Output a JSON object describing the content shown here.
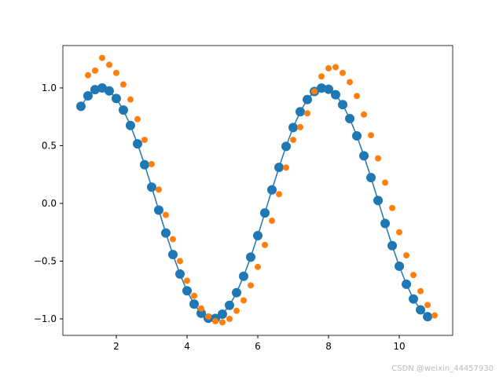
{
  "chart_data": {
    "type": "line-scatter",
    "xlim": [
      0.49,
      11.51
    ],
    "ylim": [
      -1.143,
      1.367
    ],
    "xticks": [
      2,
      4,
      6,
      8,
      10
    ],
    "yticks": [
      {
        "value": -1,
        "label": "−1.0"
      },
      {
        "value": -0.5,
        "label": "−0.5"
      },
      {
        "value": 0,
        "label": "0.0"
      },
      {
        "value": 0.5,
        "label": "0.5"
      },
      {
        "value": 1,
        "label": "1.0"
      }
    ],
    "series": [
      {
        "kind": "line-markers",
        "color": "#1f77b4",
        "x": [
          1.0,
          1.2,
          1.4,
          1.6,
          1.8,
          2.0,
          2.2,
          2.4,
          2.6,
          2.8,
          3.0,
          3.2,
          3.4,
          3.6,
          3.8,
          4.0,
          4.2,
          4.4,
          4.6,
          4.8,
          5.0,
          5.2,
          5.4,
          5.6,
          5.8,
          6.0,
          6.2,
          6.4,
          6.6,
          6.8,
          7.0,
          7.2,
          7.4,
          7.6,
          7.8,
          8.0,
          8.2,
          8.4,
          8.6,
          8.8,
          9.0,
          9.2,
          9.4,
          9.6,
          9.8,
          10.0,
          10.2,
          10.4,
          10.6,
          10.8
        ],
        "values": [
          0.841,
          0.932,
          0.985,
          1.0,
          0.974,
          0.909,
          0.808,
          0.675,
          0.516,
          0.335,
          0.141,
          -0.058,
          -0.256,
          -0.443,
          -0.612,
          -0.757,
          -0.872,
          -0.952,
          -0.994,
          -0.996,
          -0.959,
          -0.883,
          -0.773,
          -0.631,
          -0.465,
          -0.279,
          -0.083,
          0.117,
          0.312,
          0.494,
          0.657,
          0.794,
          0.899,
          0.969,
          0.999,
          0.989,
          0.941,
          0.855,
          0.734,
          0.585,
          0.412,
          0.223,
          0.025,
          -0.174,
          -0.366,
          -0.544,
          -0.7,
          -0.828,
          -0.922,
          -0.981
        ]
      },
      {
        "kind": "markers",
        "color": "#ff7f0e",
        "x": [
          1.2,
          1.4,
          1.6,
          1.8,
          2.0,
          2.2,
          2.4,
          2.6,
          2.8,
          3.0,
          3.2,
          3.4,
          3.6,
          3.8,
          4.0,
          4.2,
          4.4,
          4.6,
          4.8,
          5.0,
          5.2,
          5.4,
          5.6,
          5.8,
          6.0,
          6.2,
          6.4,
          6.6,
          6.8,
          7.0,
          7.2,
          7.4,
          7.6,
          7.8,
          8.0,
          8.2,
          8.4,
          8.6,
          8.8,
          9.0,
          9.2,
          9.4,
          9.6,
          9.8,
          10.0,
          10.2,
          10.4,
          10.6,
          10.8,
          11.0
        ],
        "values": [
          1.11,
          1.15,
          1.26,
          1.2,
          1.13,
          1.03,
          0.9,
          0.73,
          0.55,
          0.34,
          0.12,
          -0.1,
          -0.31,
          -0.5,
          -0.67,
          -0.8,
          -0.91,
          -0.98,
          -1.02,
          -1.03,
          -1.0,
          -0.93,
          -0.84,
          -0.71,
          -0.55,
          -0.36,
          -0.15,
          0.08,
          0.31,
          0.55,
          0.66,
          0.78,
          0.97,
          1.1,
          1.17,
          1.18,
          1.13,
          1.05,
          0.93,
          0.77,
          0.59,
          0.39,
          0.18,
          -0.04,
          -0.25,
          -0.45,
          -0.62,
          -0.76,
          -0.88,
          -0.97
        ]
      }
    ],
    "watermark": "CSDN @weixin_44457930"
  }
}
